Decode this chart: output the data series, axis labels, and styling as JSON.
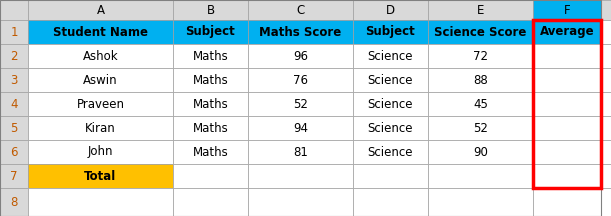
{
  "col_headers": [
    "A",
    "B",
    "C",
    "D",
    "E",
    "F"
  ],
  "header_row": [
    "Student Name",
    "Subject",
    "Maths Score",
    "Subject",
    "Science Score",
    "Average"
  ],
  "data_rows": [
    [
      "Ashok",
      "Maths",
      "96",
      "Science",
      "72",
      ""
    ],
    [
      "Aswin",
      "Maths",
      "76",
      "Science",
      "88",
      ""
    ],
    [
      "Praveen",
      "Maths",
      "52",
      "Science",
      "45",
      ""
    ],
    [
      "Kiran",
      "Maths",
      "94",
      "Science",
      "52",
      ""
    ],
    [
      "John",
      "Maths",
      "81",
      "Science",
      "90",
      ""
    ]
  ],
  "total_row": [
    "Total",
    "",
    "",
    "",
    "",
    ""
  ],
  "empty_row": [
    "",
    "",
    "",
    "",
    "",
    ""
  ],
  "header_bg": "#00B0F0",
  "total_bg": "#FFC000",
  "cell_bg": "#FFFFFF",
  "grid_color": "#A0A0A0",
  "col_header_bg": "#D9D9D9",
  "highlight_col_bg": "#00B0F0",
  "highlight_col_border": "#FF0000",
  "row_num_text_color": "#C05A00",
  "figsize": [
    6.11,
    2.16
  ],
  "dpi": 100
}
